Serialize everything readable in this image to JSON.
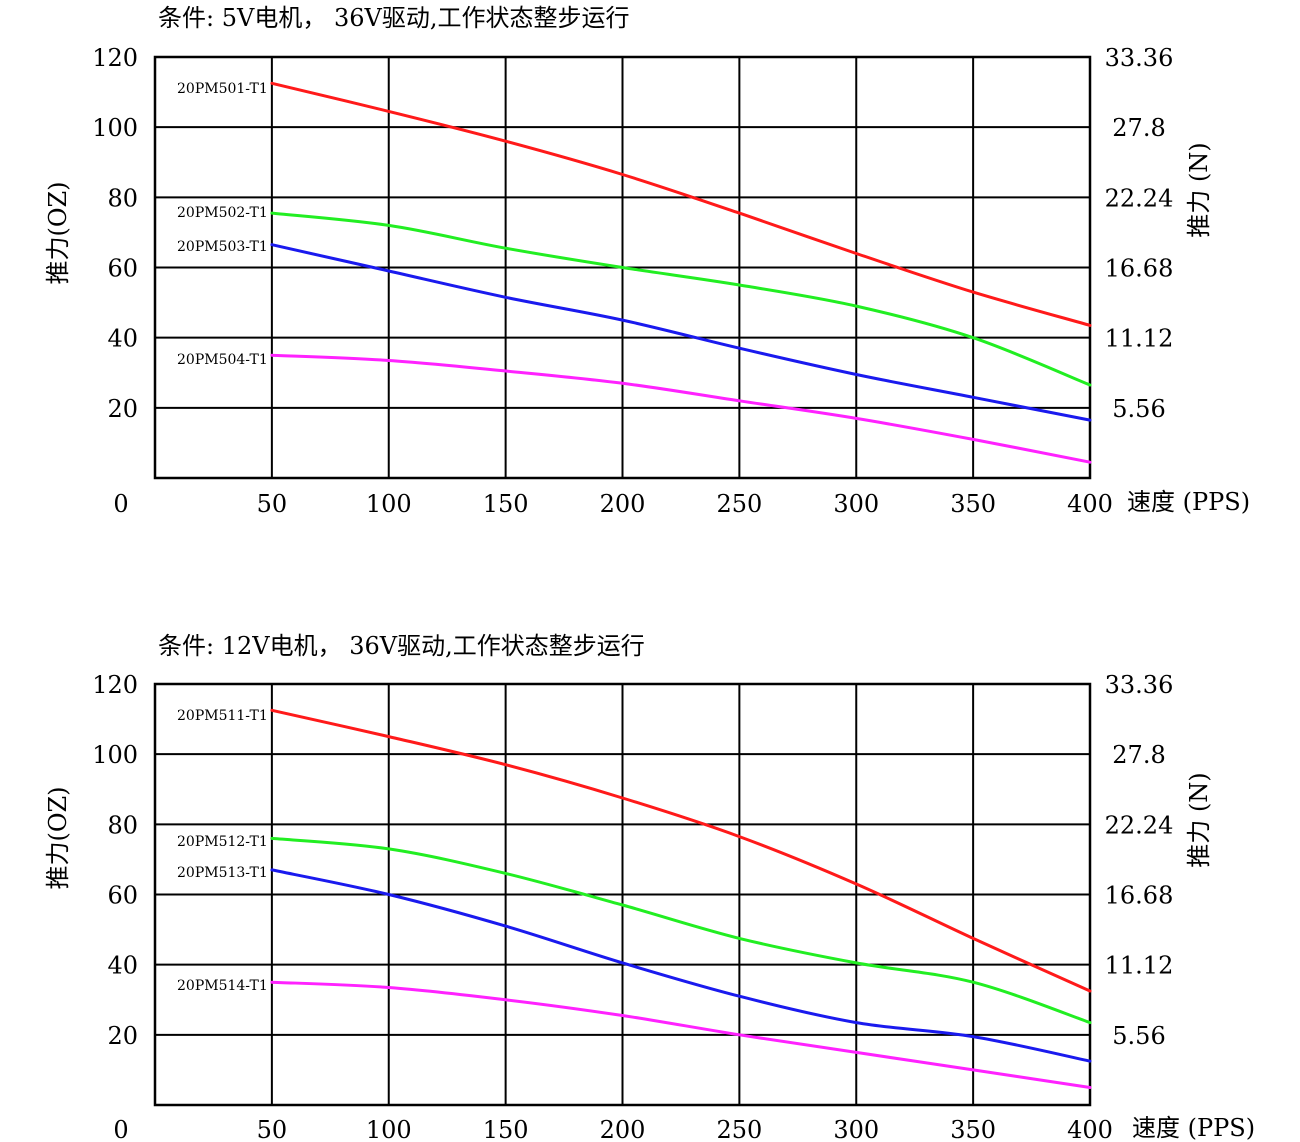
{
  "chart_data": [
    {
      "type": "line",
      "title": "条件: 5V电机， 36V驱动,工作状态整步运行",
      "xlabel": "速度 (PPS)",
      "ylabel": "推力(OZ)",
      "ylabel_right": "推力 (N)",
      "xlim": [
        0,
        400
      ],
      "ylim": [
        0,
        120
      ],
      "x_ticks": [
        "0",
        "50",
        "100",
        "150",
        "200",
        "250",
        "300",
        "350",
        "400"
      ],
      "y_ticks": [
        "120",
        "100",
        "80",
        "60",
        "40",
        "20"
      ],
      "y_ticks_right": [
        "33.36",
        "27.8",
        "22.24",
        "16.68",
        "11.12",
        "5.56"
      ],
      "grid": true,
      "x": [
        50,
        100,
        150,
        200,
        250,
        300,
        350,
        400
      ],
      "series": [
        {
          "name": "20PM501-T1",
          "color": "#ff1a1a",
          "values": [
            112.5,
            104.5,
            96,
            86.5,
            75.5,
            64,
            53,
            43.5
          ]
        },
        {
          "name": "20PM502-T1",
          "color": "#22ee22",
          "values": [
            75.5,
            72,
            65.5,
            60,
            55,
            49,
            40,
            26.5
          ]
        },
        {
          "name": "20PM503-T1",
          "color": "#1a1aee",
          "values": [
            66.5,
            59,
            51.5,
            45,
            37,
            29.5,
            23,
            16.5
          ]
        },
        {
          "name": "20PM504-T1",
          "color": "#ff22ff",
          "values": [
            35,
            33.5,
            30.5,
            27,
            22,
            17,
            11,
            4.5
          ]
        }
      ]
    },
    {
      "type": "line",
      "title": "条件: 12V电机， 36V驱动,工作状态整步运行",
      "xlabel": "速度 (PPS)",
      "ylabel": "推力(OZ)",
      "ylabel_right": "推力 (N)",
      "xlim": [
        0,
        400
      ],
      "ylim": [
        0,
        120
      ],
      "x_ticks": [
        "0",
        "50",
        "100",
        "150",
        "200",
        "250",
        "300",
        "350",
        "400"
      ],
      "y_ticks": [
        "120",
        "100",
        "80",
        "60",
        "40",
        "20"
      ],
      "y_ticks_right": [
        "33.36",
        "27.8",
        "22.24",
        "16.68",
        "11.12",
        "5.56"
      ],
      "grid": true,
      "x": [
        50,
        100,
        150,
        200,
        250,
        300,
        350,
        400
      ],
      "series": [
        {
          "name": "20PM511-T1",
          "color": "#ff1a1a",
          "values": [
            112.5,
            105,
            97,
            87.5,
            76.5,
            63,
            47.5,
            32.5
          ]
        },
        {
          "name": "20PM512-T1",
          "color": "#22ee22",
          "values": [
            76,
            73,
            66,
            57,
            47.5,
            40.5,
            35,
            23.5
          ]
        },
        {
          "name": "20PM513-T1",
          "color": "#1a1aee",
          "values": [
            67,
            60,
            51,
            40.5,
            31,
            23.5,
            19.5,
            12.5
          ]
        },
        {
          "name": "20PM514-T1",
          "color": "#ff22ff",
          "values": [
            35,
            33.5,
            30,
            25.5,
            20,
            15,
            10,
            5
          ]
        }
      ]
    }
  ]
}
